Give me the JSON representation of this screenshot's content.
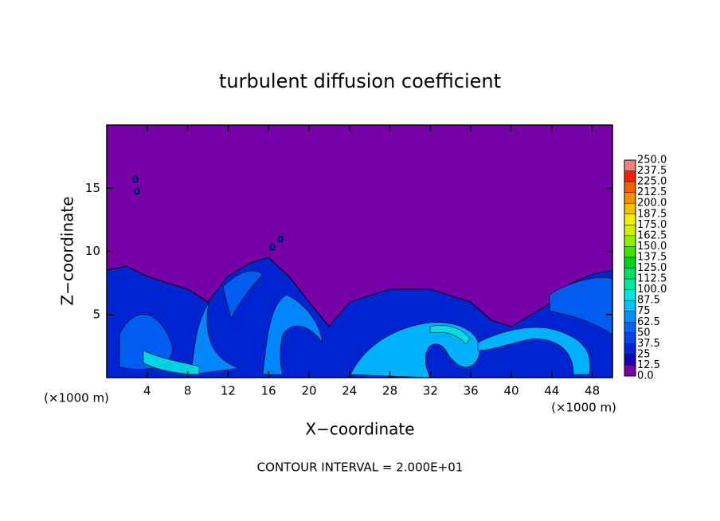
{
  "chart_data": {
    "type": "contour",
    "title": "turbulent diffusion coefficient",
    "x_label": "X−coordinate",
    "y_label": "Z−coordinate",
    "x_unit": "(×1000 m)",
    "annotation": "CONTOUR INTERVAL = 2.000E+01",
    "xlim": [
      0,
      50
    ],
    "xticks": [
      4,
      8,
      12,
      16,
      20,
      24,
      28,
      32,
      36,
      40,
      44,
      48
    ],
    "ylim": [
      0,
      20
    ],
    "yticks": [
      5,
      10,
      15
    ],
    "colorbar": {
      "levels": [
        {
          "value": 0,
          "label": "0.0"
        },
        12.5,
        25,
        37.5,
        50,
        62.5,
        75,
        87.5,
        {
          "value": 100,
          "label": "100.0"
        },
        112.5,
        {
          "value": 125,
          "label": "125.0"
        },
        137.5,
        {
          "value": 150,
          "label": "150.0"
        },
        162.5,
        {
          "value": 175,
          "label": "175.0"
        },
        187.5,
        {
          "value": 200,
          "label": "200.0"
        },
        212.5,
        {
          "value": 225,
          "label": "225.0"
        },
        237.5,
        {
          "value": 250,
          "label": "250.0"
        }
      ],
      "colors": [
        "#7800a8",
        "#1800b8",
        "#0024d0",
        "#0044e4",
        "#0064f4",
        "#0090ff",
        "#00c0ff",
        "#00e4e0",
        "#00e8a0",
        "#00e060",
        "#00d020",
        "#40e000",
        "#90f000",
        "#d0f000",
        "#f0f000",
        "#f0c000",
        "#f09000",
        "#f06000",
        "#f02000",
        "#f08080"
      ]
    }
  }
}
